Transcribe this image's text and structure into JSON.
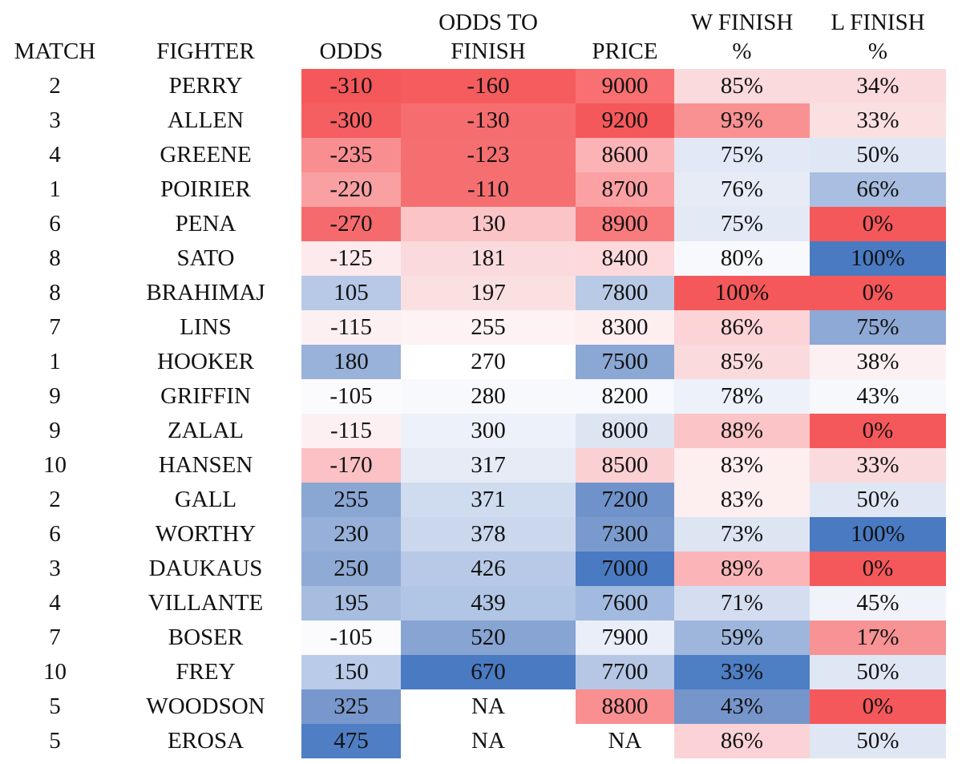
{
  "chart_data": {
    "type": "table",
    "columns": [
      "MATCH",
      "FIGHTER",
      "ODDS",
      "ODDS TO FINISH",
      "PRICE",
      "W FINISH %",
      "L FINISH %"
    ],
    "header_lines": [
      [
        "",
        "MATCH"
      ],
      [
        "",
        "FIGHTER"
      ],
      [
        "",
        "ODDS"
      ],
      [
        "ODDS TO",
        "FINISH"
      ],
      [
        "",
        "PRICE"
      ],
      [
        "W FINISH",
        "%"
      ],
      [
        "L FINISH",
        "%"
      ]
    ],
    "rows": [
      [
        "2",
        "PERRY",
        "-310",
        "-160",
        "9000",
        "85%",
        "34%"
      ],
      [
        "3",
        "ALLEN",
        "-300",
        "-130",
        "9200",
        "93%",
        "33%"
      ],
      [
        "4",
        "GREENE",
        "-235",
        "-123",
        "8600",
        "75%",
        "50%"
      ],
      [
        "1",
        "POIRIER",
        "-220",
        "-110",
        "8700",
        "76%",
        "66%"
      ],
      [
        "6",
        "PENA",
        "-270",
        "130",
        "8900",
        "75%",
        "0%"
      ],
      [
        "8",
        "SATO",
        "-125",
        "181",
        "8400",
        "80%",
        "100%"
      ],
      [
        "8",
        "BRAHIMAJ",
        "105",
        "197",
        "7800",
        "100%",
        "0%"
      ],
      [
        "7",
        "LINS",
        "-115",
        "255",
        "8300",
        "86%",
        "75%"
      ],
      [
        "1",
        "HOOKER",
        "180",
        "270",
        "7500",
        "85%",
        "38%"
      ],
      [
        "9",
        "GRIFFIN",
        "-105",
        "280",
        "8200",
        "78%",
        "43%"
      ],
      [
        "9",
        "ZALAL",
        "-115",
        "300",
        "8000",
        "88%",
        "0%"
      ],
      [
        "10",
        "HANSEN",
        "-170",
        "317",
        "8500",
        "83%",
        "33%"
      ],
      [
        "2",
        "GALL",
        "255",
        "371",
        "7200",
        "83%",
        "50%"
      ],
      [
        "6",
        "WORTHY",
        "230",
        "378",
        "7300",
        "73%",
        "100%"
      ],
      [
        "3",
        "DAUKAUS",
        "250",
        "426",
        "7000",
        "89%",
        "0%"
      ],
      [
        "4",
        "VILLANTE",
        "195",
        "439",
        "7600",
        "71%",
        "45%"
      ],
      [
        "7",
        "BOSER",
        "-105",
        "520",
        "7900",
        "59%",
        "17%"
      ],
      [
        "10",
        "FREY",
        "150",
        "670",
        "7700",
        "33%",
        "50%"
      ],
      [
        "5",
        "WOODSON",
        "325",
        "NA",
        "8800",
        "43%",
        "0%"
      ],
      [
        "5",
        "EROSA",
        "475",
        "NA",
        "NA",
        "86%",
        "50%"
      ]
    ],
    "cell_colors": [
      [
        "#ffffff",
        "#ffffff",
        "#f5585a",
        "#f55c5e",
        "#f87072",
        "#fbdadd",
        "#fbdadd"
      ],
      [
        "#ffffff",
        "#ffffff",
        "#f55f61",
        "#f56d6f",
        "#f5585a",
        "#f99193",
        "#fbe0e2"
      ],
      [
        "#ffffff",
        "#ffffff",
        "#f98e90",
        "#f56f71",
        "#fcb3b5",
        "#e2e8f5",
        "#e0e7f4"
      ],
      [
        "#ffffff",
        "#ffffff",
        "#f9a0a2",
        "#f56f71",
        "#fba1a3",
        "#e6ebf6",
        "#a9bee0"
      ],
      [
        "#ffffff",
        "#ffffff",
        "#f56b6d",
        "#fbc5c7",
        "#f87b7d",
        "#e3e9f5",
        "#f5585a"
      ],
      [
        "#ffffff",
        "#ffffff",
        "#fdeaec",
        "#fbdadd",
        "#fdd9dc",
        "#f7f9fd",
        "#4a7ac2"
      ],
      [
        "#ffffff",
        "#ffffff",
        "#b7c9e6",
        "#fbe0e2",
        "#b9cae6",
        "#f5585a",
        "#f5585a"
      ],
      [
        "#ffffff",
        "#ffffff",
        "#fdf0f2",
        "#fdf2f4",
        "#fdeef0",
        "#fcd3d6",
        "#8ea9d5"
      ],
      [
        "#ffffff",
        "#ffffff",
        "#99b2da",
        "#ffffff",
        "#8ba7d4",
        "#fbdadd",
        "#fdf0f2"
      ],
      [
        "#ffffff",
        "#ffffff",
        "#fbfbfe",
        "#f8f9fd",
        "#f8f9fe",
        "#edf1f9",
        "#f6f8fc"
      ],
      [
        "#ffffff",
        "#ffffff",
        "#fdf0f2",
        "#edf1f9",
        "#dde5f3",
        "#fbc5c7",
        "#f5585a"
      ],
      [
        "#ffffff",
        "#ffffff",
        "#fbc1c4",
        "#e6ebf6",
        "#fbd0d3",
        "#fdeef0",
        "#fbdadd"
      ],
      [
        "#ffffff",
        "#ffffff",
        "#8aa6d3",
        "#cfdbef",
        "#6f92ca",
        "#fdeef0",
        "#e0e7f4"
      ],
      [
        "#ffffff",
        "#ffffff",
        "#96b0d9",
        "#cad7ed",
        "#7a9ace",
        "#dde5f3",
        "#4a7ac2"
      ],
      [
        "#ffffff",
        "#ffffff",
        "#8eaad5",
        "#b7c9e6",
        "#4a7ac2",
        "#fbb5b8",
        "#f5585a"
      ],
      [
        "#ffffff",
        "#ffffff",
        "#a7bde0",
        "#b1c5e4",
        "#a3bae0",
        "#d5def1",
        "#f0f3fa"
      ],
      [
        "#ffffff",
        "#ffffff",
        "#fbfbfe",
        "#87a4d3",
        "#eaeef8",
        "#9eb6dc",
        "#f79395"
      ],
      [
        "#ffffff",
        "#ffffff",
        "#b9cbe8",
        "#4a7ac2",
        "#b5c7e5",
        "#4e7ec4",
        "#e0e7f4"
      ],
      [
        "#ffffff",
        "#ffffff",
        "#7897cc",
        "#ffffff",
        "#f98f91",
        "#7595cb",
        "#f5585a"
      ],
      [
        "#ffffff",
        "#ffffff",
        "#4f7ec4",
        "#ffffff",
        "#ffffff",
        "#fbd3d6",
        "#e0e7f4"
      ]
    ]
  }
}
